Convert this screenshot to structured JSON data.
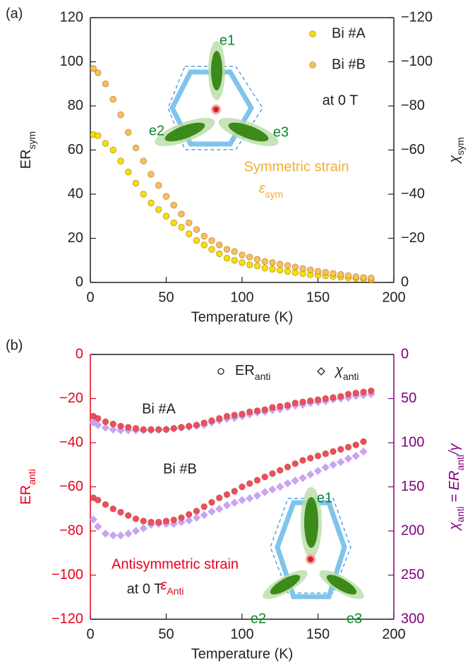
{
  "chart_data": [
    {
      "type": "scatter",
      "panel_label": "(a)",
      "xlabel": "Temperature (K)",
      "ylabel": [
        "ER",
        "sym"
      ],
      "y2label": [
        "χ",
        "sym"
      ],
      "xlim": [
        0,
        200
      ],
      "xticks": [
        0,
        50,
        100,
        150,
        200
      ],
      "ylim": [
        0,
        120
      ],
      "yticks": [
        0,
        20,
        40,
        60,
        80,
        100,
        120
      ],
      "y2lim": [
        0,
        -120
      ],
      "y2ticks": [
        0,
        {
          "value": -20,
          "label": "−20"
        },
        {
          "value": -40,
          "label": "−40"
        },
        {
          "value": -60,
          "label": "−60"
        },
        {
          "value": -80,
          "label": "−80"
        },
        {
          "value": -100,
          "label": "−100"
        },
        {
          "value": -120,
          "label": "−120"
        }
      ],
      "x": [
        2,
        5,
        10,
        15,
        20,
        25,
        30,
        35,
        40,
        45,
        50,
        55,
        60,
        65,
        70,
        75,
        80,
        85,
        90,
        95,
        100,
        105,
        110,
        115,
        120,
        125,
        130,
        135,
        140,
        145,
        150,
        155,
        160,
        165,
        170,
        175,
        180,
        185
      ],
      "series": [
        {
          "name": "Bi #A",
          "color": "#f5e200",
          "marker": "circle",
          "values": [
            67,
            66.5,
            63,
            60,
            55,
            50,
            45,
            40,
            36,
            33,
            30,
            27,
            25,
            22,
            19,
            17,
            15,
            13,
            11,
            10,
            9,
            8,
            7.5,
            6.5,
            6,
            5.5,
            5,
            4.5,
            4,
            3.5,
            3.3,
            3,
            2.7,
            2.4,
            2.1,
            1.8,
            1.5,
            1.3
          ]
        },
        {
          "name": "Bi #B",
          "color": "#f8c05a",
          "marker": "circle",
          "values": [
            97,
            95,
            90,
            83,
            76,
            68,
            61,
            55,
            49,
            44,
            39,
            35,
            31,
            27,
            24,
            21,
            19,
            17,
            15,
            14,
            12.5,
            11.5,
            10.5,
            9.5,
            9,
            8.3,
            7.7,
            7,
            6.3,
            5.7,
            5,
            4.6,
            4.1,
            3.6,
            3.1,
            2.6,
            2.2,
            2
          ]
        }
      ],
      "annotations": [
        "e1",
        "e2",
        "e3",
        "at 0 T",
        "Symmetric strain",
        [
          "ε",
          "sym"
        ]
      ]
    },
    {
      "type": "scatter",
      "panel_label": "(b)",
      "xlabel": "Temperature (K)",
      "ylabel": [
        "ER",
        "anti"
      ],
      "y2label": [
        "χ",
        "anti",
        " = ER",
        "anti",
        "/γ"
      ],
      "xlim": [
        0,
        200
      ],
      "xticks": [
        0,
        50,
        100,
        150,
        200
      ],
      "ylim": [
        -120,
        0
      ],
      "yticks": [
        0,
        {
          "value": -20,
          "label": "−20"
        },
        {
          "value": -40,
          "label": "−40"
        },
        {
          "value": -60,
          "label": "−60"
        },
        {
          "value": -80,
          "label": "−80"
        },
        {
          "value": -100,
          "label": "−100"
        },
        {
          "value": -120,
          "label": "−120"
        }
      ],
      "y2lim": [
        300,
        0
      ],
      "y2ticks": [
        0,
        50,
        100,
        150,
        200,
        250,
        300
      ],
      "y_color": "#e8001c",
      "y2_color": "#800080",
      "x": [
        2,
        5,
        10,
        15,
        20,
        25,
        30,
        35,
        40,
        45,
        50,
        55,
        60,
        65,
        70,
        75,
        80,
        85,
        90,
        95,
        100,
        105,
        110,
        115,
        120,
        125,
        130,
        135,
        140,
        145,
        150,
        155,
        160,
        165,
        170,
        175,
        180,
        185
      ],
      "legend": [
        {
          "marker": "circle",
          "label": [
            "ER",
            "anti"
          ]
        },
        {
          "marker": "diamond",
          "label": [
            "χ",
            "anti"
          ]
        }
      ],
      "series": [
        {
          "color": "#c9a4f2",
          "marker": "diamond",
          "axis": "y2",
          "values": [
            77,
            80,
            83,
            85,
            86,
            86,
            86,
            86,
            86,
            85.5,
            85,
            84,
            83,
            82,
            81,
            80,
            77,
            75,
            73,
            72,
            70,
            68,
            66,
            65,
            63,
            62,
            60,
            58,
            57,
            55,
            54,
            53,
            51,
            50,
            49,
            47,
            46,
            45
          ]
        },
        {
          "color": "#c9a4f2",
          "marker": "diamond",
          "axis": "y2",
          "values": [
            187,
            195,
            203,
            205,
            205,
            203,
            200,
            197,
            193,
            192,
            192,
            192,
            190,
            188,
            185,
            182,
            178,
            175,
            171,
            168,
            165,
            163,
            160,
            156,
            153,
            150,
            146,
            143,
            140,
            136,
            132,
            128,
            125,
            122,
            118,
            115,
            110,
            null
          ]
        },
        {
          "name": "Bi #A",
          "color": "#f24a66",
          "marker": "circle",
          "values": [
            -28,
            -29,
            -30.5,
            -31.5,
            -32.5,
            -33,
            -33.5,
            -34,
            -34,
            -34,
            -34,
            -33.5,
            -33,
            -32.5,
            -32,
            -31,
            -30,
            -29,
            -28,
            -27.5,
            -27,
            -26,
            -25.5,
            -25,
            -24,
            -23.5,
            -23,
            -22,
            -21.5,
            -21,
            -20.5,
            -20,
            -19.5,
            -19,
            -18,
            -17.5,
            -17,
            -16.5
          ]
        },
        {
          "name": "Bi #B",
          "color": "#f24a66",
          "marker": "circle",
          "values": [
            -65,
            -66,
            -68,
            -70,
            -71.5,
            -73,
            -74.5,
            -75.5,
            -76,
            -76,
            -75.5,
            -75,
            -74,
            -72.5,
            -71,
            -69,
            -67,
            -65,
            -63.5,
            -62,
            -60,
            -58.5,
            -57,
            -55.5,
            -54,
            -52.5,
            -51,
            -49.5,
            -48,
            -47,
            -46,
            -45,
            -44,
            -43,
            -42,
            -41,
            -39.5,
            null
          ]
        }
      ],
      "annotations": [
        "e1",
        "e2",
        "e3",
        "at 0 T",
        "Antisymmetric strain",
        [
          "ε",
          "Anti"
        ]
      ]
    }
  ]
}
